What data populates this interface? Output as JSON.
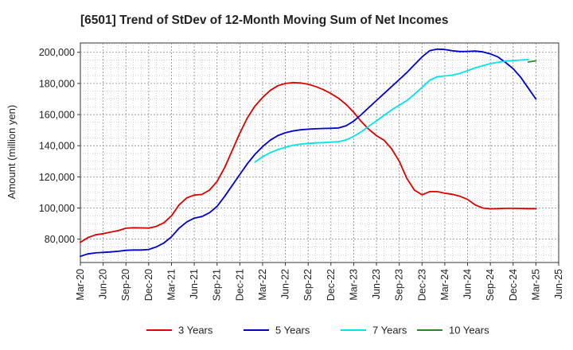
{
  "chart_data": {
    "type": "line",
    "title": "[6501]  Trend of StDev of 12-Month Moving Sum of Net Incomes",
    "xlabel": "",
    "ylabel": "Amount (million yen)",
    "ylim": [
      65000,
      206000
    ],
    "yticks": [
      80000,
      100000,
      120000,
      140000,
      160000,
      180000,
      200000
    ],
    "ytick_labels": [
      "80,000",
      "100,000",
      "120,000",
      "140,000",
      "160,000",
      "180,000",
      "200,000"
    ],
    "x_range": [
      "2020-03",
      "2025-06"
    ],
    "xticks": [
      "2020-03",
      "2020-06",
      "2020-09",
      "2020-12",
      "2021-03",
      "2021-06",
      "2021-09",
      "2021-12",
      "2022-03",
      "2022-06",
      "2022-09",
      "2022-12",
      "2023-03",
      "2023-06",
      "2023-09",
      "2023-12",
      "2024-03",
      "2024-06",
      "2024-09",
      "2024-12",
      "2025-03",
      "2025-06"
    ],
    "xtick_labels": [
      "Mar-20",
      "Jun-20",
      "Sep-20",
      "Dec-20",
      "Mar-21",
      "Jun-21",
      "Sep-21",
      "Dec-21",
      "Mar-22",
      "Jun-22",
      "Sep-22",
      "Dec-22",
      "Mar-23",
      "Jun-23",
      "Sep-23",
      "Dec-23",
      "Mar-24",
      "Jun-24",
      "Sep-24",
      "Dec-24",
      "Mar-25",
      "Jun-25"
    ],
    "grid": true,
    "legend_position": "bottom",
    "series": [
      {
        "name": "3 Years",
        "color": "#dd0000",
        "x_start": "2020-03",
        "values": [
          78000,
          81000,
          82800,
          83500,
          84500,
          85500,
          87000,
          87300,
          87200,
          87100,
          88200,
          90500,
          95000,
          102000,
          106500,
          108300,
          108700,
          111500,
          117000,
          126000,
          137000,
          148000,
          158000,
          165500,
          171000,
          175500,
          178500,
          180000,
          180500,
          180300,
          179500,
          178000,
          176000,
          173500,
          170500,
          166500,
          161500,
          155500,
          150500,
          146500,
          143500,
          138000,
          130000,
          119000,
          111500,
          108500,
          110500,
          110500,
          109500,
          108800,
          107500,
          105500,
          102000,
          100000,
          99500,
          99600,
          99800,
          99800,
          99700,
          99600,
          99600
        ]
      },
      {
        "name": "5 Years",
        "color": "#0000cc",
        "x_start": "2020-03",
        "values": [
          69000,
          70500,
          71200,
          71500,
          71800,
          72200,
          72800,
          73000,
          73000,
          73400,
          75000,
          77500,
          81500,
          87000,
          91000,
          93500,
          94500,
          97000,
          101000,
          107500,
          114500,
          121500,
          128500,
          134500,
          139500,
          143500,
          146500,
          148300,
          149500,
          150200,
          150600,
          150900,
          151100,
          151200,
          151400,
          152800,
          155800,
          160000,
          164500,
          169000,
          173500,
          178000,
          182500,
          187000,
          192000,
          197000,
          201000,
          202000,
          201800,
          201000,
          200500,
          200600,
          200800,
          200300,
          199000,
          197000,
          193500,
          189500,
          184000,
          177000,
          170000
        ]
      },
      {
        "name": "7 Years",
        "color": "#00e5e5",
        "x_start": "2022-02",
        "values": [
          129500,
          133000,
          135500,
          137500,
          139000,
          140300,
          141000,
          141500,
          141800,
          142000,
          142300,
          142600,
          143700,
          146000,
          149000,
          152500,
          156000,
          159500,
          163000,
          166000,
          169000,
          173000,
          177500,
          182000,
          184300,
          184800,
          185300,
          186500,
          188200,
          190000,
          191400,
          192700,
          193600,
          194300,
          194700,
          195000,
          195300
        ]
      },
      {
        "name": "10 Years",
        "color": "#228b22",
        "x_start": "2025-02",
        "values": [
          193800,
          194500
        ]
      }
    ]
  }
}
